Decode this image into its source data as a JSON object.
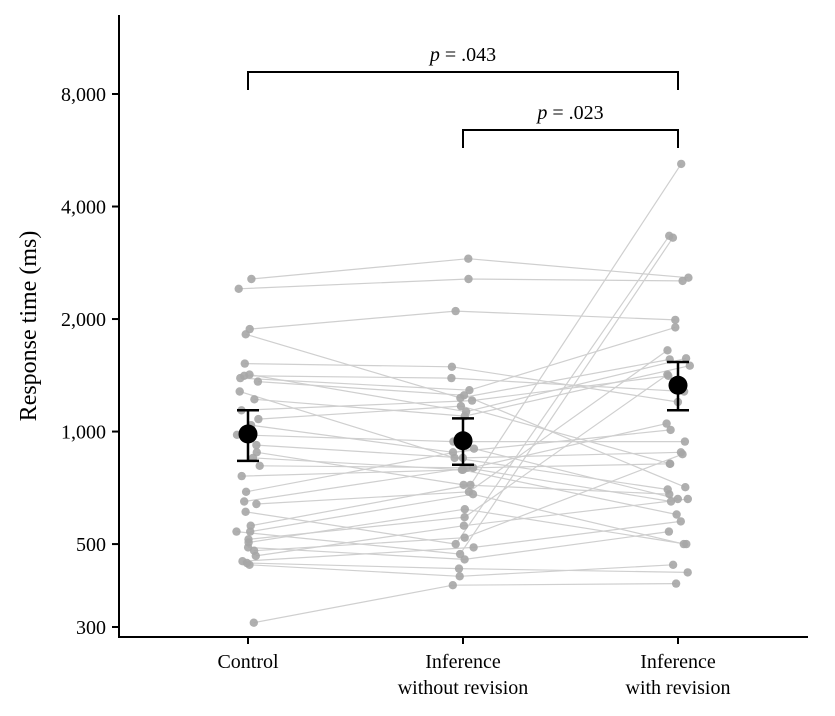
{
  "chart_data": {
    "type": "scatter",
    "subtype": "paired-dot-plot-log-y",
    "ylabel": "Response time (ms)",
    "xlabel": "",
    "title": "",
    "y_scale": "log",
    "ylim": [
      300,
      11000
    ],
    "y_ticks": [
      300,
      500,
      1000,
      2000,
      4000,
      8000
    ],
    "y_tick_labels": [
      "300",
      "500",
      "1,000",
      "2,000",
      "4,000",
      "8,000"
    ],
    "categories": [
      [
        "Control"
      ],
      [
        "Inference",
        "without revision"
      ],
      [
        "Inference",
        "with revision"
      ]
    ],
    "grid": false,
    "legend": "none",
    "colors": {
      "participant": "#a6a6a6",
      "line": "#cfcfcf",
      "mean": "#000000"
    },
    "participants": [
      [
        308,
        388,
        392
      ],
      [
        440,
        410,
        440
      ],
      [
        445,
        430,
        420
      ],
      [
        450,
        490,
        575
      ],
      [
        465,
        560,
        660
      ],
      [
        480,
        520,
        870
      ],
      [
        490,
        455,
        540
      ],
      [
        505,
        620,
        500
      ],
      [
        515,
        590,
        1420
      ],
      [
        540,
        470,
        3300
      ],
      [
        540,
        680,
        500
      ],
      [
        560,
        720,
        5200
      ],
      [
        610,
        500,
        3340
      ],
      [
        640,
        690,
        1650
      ],
      [
        650,
        800,
        650
      ],
      [
        690,
        900,
        660
      ],
      [
        760,
        790,
        600
      ],
      [
        810,
        800,
        820
      ],
      [
        850,
        790,
        1050
      ],
      [
        880,
        720,
        680
      ],
      [
        920,
        850,
        880
      ],
      [
        980,
        940,
        940
      ],
      [
        1040,
        880,
        1010
      ],
      [
        1080,
        1170,
        820
      ],
      [
        1140,
        1210,
        1410
      ],
      [
        1220,
        1100,
        1500
      ],
      [
        1280,
        850,
        700
      ],
      [
        1360,
        1250,
        710
      ],
      [
        1390,
        1290,
        1900
      ],
      [
        1410,
        1390,
        1280
      ],
      [
        1420,
        1130,
        1570
      ],
      [
        1520,
        1490,
        1200
      ],
      [
        1820,
        1230,
        1560
      ],
      [
        1880,
        2100,
        1990
      ],
      [
        2410,
        2560,
        2530
      ],
      [
        2560,
        2900,
        2580
      ]
    ],
    "means": [
      985,
      945,
      1330
    ],
    "error_bars": [
      [
        835,
        1140
      ],
      [
        815,
        1085
      ],
      [
        1140,
        1535
      ]
    ],
    "comparisons": [
      {
        "from": 0,
        "to": 2,
        "label_p": "p",
        "label_rest": " = .043"
      },
      {
        "from": 1,
        "to": 2,
        "label_p": "p",
        "label_rest": " = .023"
      }
    ]
  }
}
